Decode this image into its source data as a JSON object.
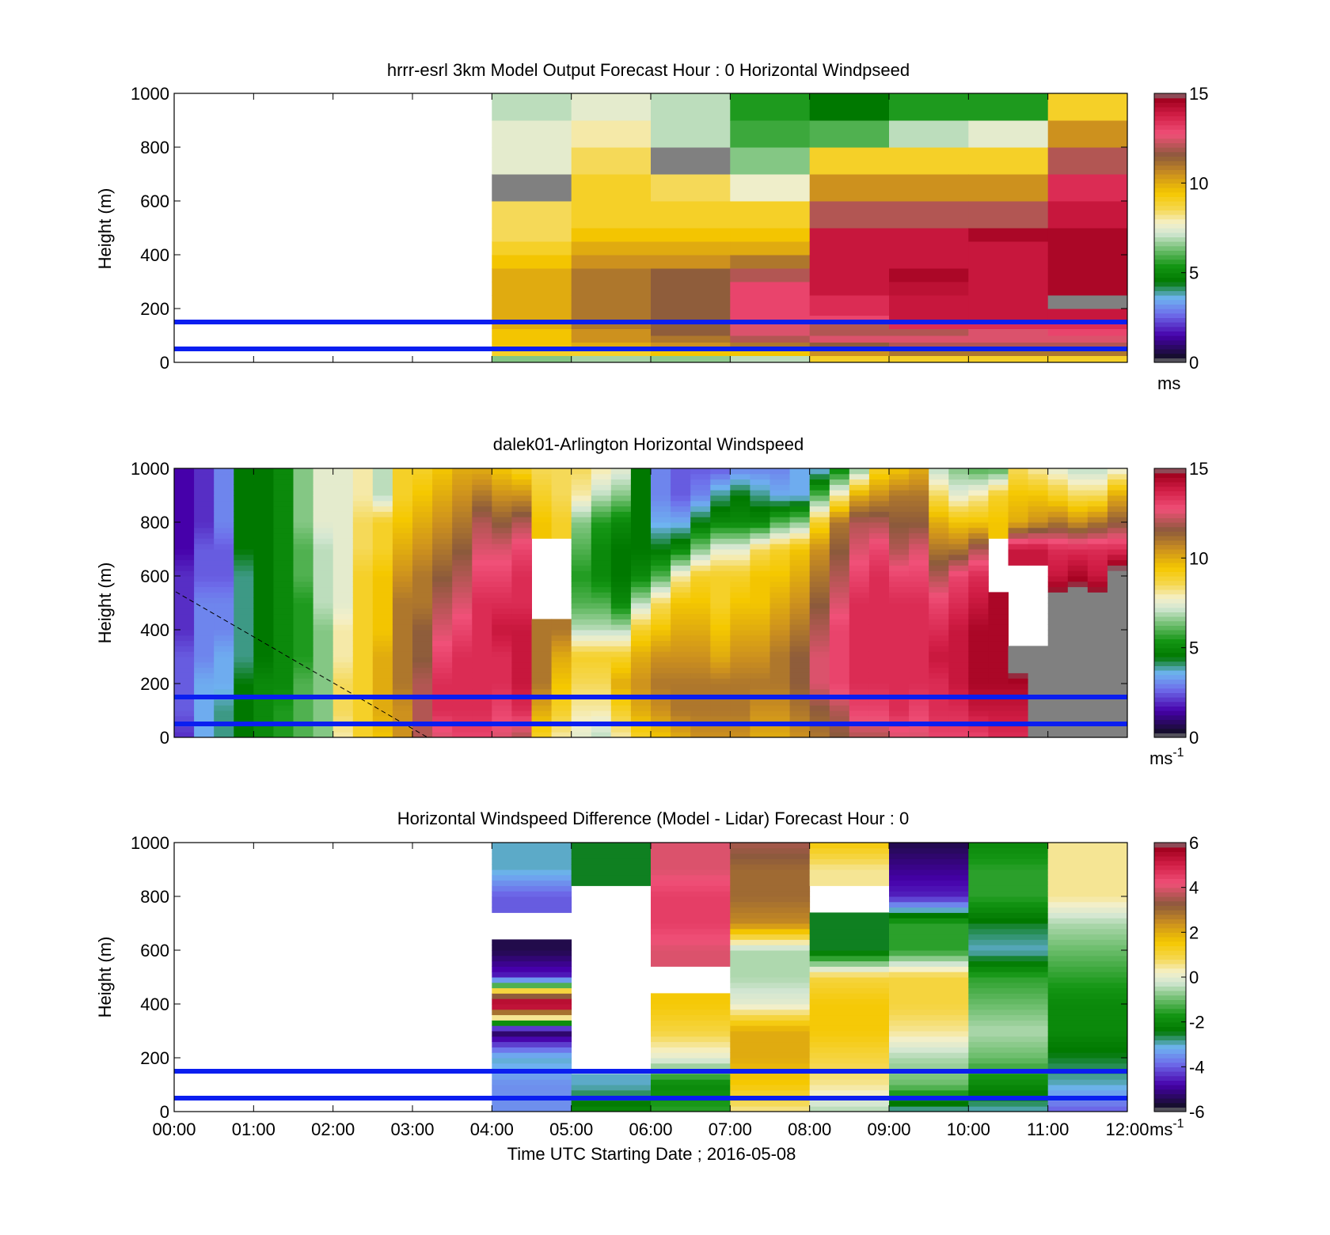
{
  "figure": {
    "xlabel": "Time UTC  Starting Date ; 2016-05-08",
    "x_ticks": [
      "00:00",
      "01:00",
      "02:00",
      "03:00",
      "04:00",
      "05:00",
      "06:00",
      "07:00",
      "08:00",
      "09:00",
      "10:00",
      "11:00",
      "12:00"
    ]
  },
  "colors": {
    "reference_lines": "#0a1ef0",
    "missing": "#808080"
  },
  "chart_data": [
    {
      "type": "heatmap",
      "title": "hrrr-esrl 3km Model Output   Forecast Hour : 0 Horizontal Windpseed",
      "ylabel": "Height (m)",
      "y_ticks": [
        "0",
        "200",
        "400",
        "600",
        "800",
        "1000"
      ],
      "ylim": [
        0,
        1000
      ],
      "xlim_hours": [
        0,
        12
      ],
      "colorbar": {
        "ticks": [
          "0",
          "5",
          "10",
          "15"
        ],
        "range": [
          0,
          15
        ],
        "unit": "ms",
        "superscript": ""
      },
      "reference_lines_m": [
        50,
        150
      ],
      "x_hours": [
        4,
        5,
        6,
        7,
        8,
        9,
        10,
        11
      ],
      "heights_m": [
        0,
        25,
        50,
        75,
        100,
        125,
        150,
        175,
        200,
        250,
        300,
        350,
        400,
        450,
        500,
        600,
        700,
        800,
        900
      ],
      "bin_edges_m": [
        0,
        25,
        50,
        75,
        100,
        125,
        150,
        175,
        200,
        250,
        300,
        350,
        400,
        450,
        500,
        600,
        700,
        800,
        900,
        1000
      ],
      "values": [
        [
          6.5,
          6.8,
          6.6,
          7.0,
          9.0,
          9.0,
          9.0,
          9.0
        ],
        [
          9.0,
          9.0,
          9.5,
          9.5,
          10.5,
          11.0,
          11.0,
          11.0
        ],
        [
          9.5,
          10.0,
          10.5,
          11.0,
          11.5,
          12.0,
          12.0,
          12.0
        ],
        [
          9.5,
          10.5,
          11.0,
          12.0,
          12.5,
          12.5,
          12.5,
          12.5
        ],
        [
          9.5,
          10.5,
          11.5,
          12.5,
          12.0,
          12.0,
          12.5,
          13.0
        ],
        [
          10.0,
          11.0,
          11.5,
          12.5,
          12.0,
          13.5,
          13.5,
          13.5
        ],
        [
          10.0,
          11.0,
          11.5,
          13.0,
          13.0,
          14.0,
          14.0,
          14.0
        ],
        [
          10.0,
          11.0,
          11.5,
          13.0,
          13.5,
          14.0,
          14.0,
          14.0
        ],
        [
          10.0,
          11.0,
          11.5,
          13.0,
          13.5,
          14.0,
          14.0,
          15.0
        ],
        [
          10.0,
          11.0,
          11.5,
          13.0,
          14.0,
          14.2,
          14.0,
          14.5
        ],
        [
          10.0,
          11.0,
          11.5,
          12.0,
          14.0,
          14.5,
          14.0,
          14.5
        ],
        [
          9.5,
          10.5,
          10.5,
          11.0,
          14.0,
          14.0,
          14.0,
          14.5
        ],
        [
          9.0,
          10.0,
          10.0,
          10.0,
          14.0,
          14.0,
          14.0,
          14.5
        ],
        [
          8.5,
          9.5,
          9.5,
          9.5,
          14.0,
          14.0,
          14.5,
          14.5
        ],
        [
          8.5,
          9.0,
          9.0,
          9.0,
          12.0,
          12.0,
          12.0,
          14.0
        ],
        [
          15.5,
          9.0,
          8.5,
          7.7,
          10.5,
          10.5,
          10.5,
          13.5
        ],
        [
          7.5,
          8.5,
          15.5,
          6.5,
          9.0,
          9.0,
          9.0,
          12.0
        ],
        [
          7.5,
          8.0,
          7.0,
          5.8,
          6.0,
          7.0,
          7.5,
          10.5
        ],
        [
          7.0,
          7.5,
          7.0,
          5.5,
          4.5,
          5.5,
          5.5,
          9.0
        ]
      ]
    },
    {
      "type": "heatmap",
      "title": "dalek01-Arlington  Horizontal Windspeed",
      "ylabel": "Height (m)",
      "y_ticks": [
        "0",
        "200",
        "400",
        "600",
        "800",
        "1000"
      ],
      "ylim": [
        0,
        1000
      ],
      "xlim_hours": [
        0,
        12
      ],
      "colorbar": {
        "ticks": [
          "0",
          "5",
          "10",
          "15"
        ],
        "range": [
          0,
          15
        ],
        "unit": "ms",
        "superscript": "-1"
      },
      "reference_lines_m": [
        50,
        150
      ],
      "x_hours": [
        0,
        0.25,
        0.5,
        0.75,
        1.0,
        1.25,
        1.5,
        1.75,
        2.0,
        2.25,
        2.5,
        2.75,
        3.0,
        3.25,
        3.5,
        3.75,
        4.0,
        4.25,
        4.5,
        4.75,
        5.0,
        5.25,
        5.5,
        5.75,
        6.0,
        6.25,
        6.5,
        6.75,
        7.0,
        7.25,
        7.5,
        7.75,
        8.0,
        8.25,
        8.5,
        8.75,
        9.0,
        9.25,
        9.5,
        9.75,
        10.0,
        10.25,
        10.5,
        10.75,
        11.0,
        11.25,
        11.5,
        11.75
      ],
      "profile_heights_m": [
        0,
        100,
        200,
        300,
        400,
        500,
        600,
        700,
        800,
        900,
        1000
      ],
      "profiles": [
        [
          2.0,
          2.5,
          2.5,
          2.5,
          2.0,
          2.0,
          2.0,
          1.5,
          1.5,
          1.5,
          1.5
        ],
        [
          3.5,
          3.5,
          3.5,
          3.0,
          3.0,
          3.0,
          2.5,
          2.5,
          2.0,
          2.0,
          2.0
        ],
        [
          4.0,
          4.0,
          3.5,
          3.5,
          3.0,
          3.0,
          2.5,
          2.5,
          3.0,
          3.0,
          3.0
        ],
        [
          4.5,
          4.5,
          4.5,
          4.0,
          4.0,
          4.0,
          4.0,
          4.5,
          4.5,
          4.5,
          4.5
        ],
        [
          5.0,
          5.0,
          5.0,
          4.5,
          4.5,
          4.5,
          4.5,
          4.5,
          4.5,
          4.5,
          4.5
        ],
        [
          5.5,
          5.5,
          5.0,
          5.0,
          5.0,
          5.0,
          5.0,
          5.0,
          5.0,
          5.0,
          5.0
        ],
        [
          6.0,
          6.0,
          6.0,
          5.5,
          5.5,
          5.5,
          6.0,
          6.0,
          6.5,
          6.5,
          6.5
        ],
        [
          6.5,
          6.5,
          6.5,
          6.5,
          6.5,
          7.0,
          7.0,
          7.0,
          7.5,
          7.5,
          7.5
        ],
        [
          8.0,
          8.5,
          8.5,
          8.0,
          8.0,
          7.5,
          7.5,
          7.5,
          7.5,
          7.5,
          7.5
        ],
        [
          9.0,
          9.0,
          9.0,
          9.0,
          9.0,
          9.0,
          9.0,
          8.5,
          8.5,
          8.0,
          8.0
        ],
        [
          9.5,
          10.0,
          10.0,
          10.0,
          9.5,
          9.5,
          9.5,
          9.0,
          9.0,
          7.0,
          7.0
        ],
        [
          10.5,
          10.5,
          11.0,
          11.0,
          11.0,
          11.0,
          10.5,
          10.0,
          9.5,
          9.0,
          9.0
        ],
        [
          12.0,
          12.0,
          12.0,
          11.5,
          11.5,
          11.0,
          11.0,
          10.5,
          10.0,
          9.5,
          9.0
        ],
        [
          12.5,
          13.5,
          13.5,
          13.0,
          12.5,
          12.0,
          11.5,
          11.0,
          10.5,
          10.0,
          9.5
        ],
        [
          13.0,
          13.5,
          13.5,
          13.5,
          13.0,
          12.5,
          12.0,
          11.5,
          11.0,
          10.5,
          10.0
        ],
        [
          13.0,
          13.5,
          13.5,
          13.5,
          13.5,
          13.5,
          13.0,
          12.5,
          12.0,
          11.0,
          10.0
        ],
        [
          12.5,
          13.0,
          13.5,
          13.5,
          14.0,
          13.5,
          13.0,
          12.5,
          11.5,
          10.5,
          9.5
        ],
        [
          12.0,
          13.5,
          14.0,
          14.0,
          14.0,
          13.5,
          13.5,
          13.0,
          12.0,
          10.5,
          9.0
        ],
        [
          9.0,
          10.0,
          11.0,
          11.0,
          11.0,
          null,
          null,
          null,
          9.5,
          9.0,
          8.5
        ],
        [
          8.0,
          9.0,
          9.5,
          10.0,
          11.0,
          null,
          null,
          null,
          9.0,
          8.5,
          8.5
        ],
        [
          7.5,
          8.0,
          8.5,
          9.0,
          7.0,
          6.0,
          5.5,
          6.0,
          6.5,
          8.0,
          8.5
        ],
        [
          7.0,
          8.0,
          8.5,
          9.0,
          7.0,
          6.0,
          5.0,
          5.0,
          5.5,
          7.0,
          8.0
        ],
        [
          8.0,
          9.0,
          10.0,
          9.0,
          7.0,
          5.0,
          4.5,
          4.5,
          5.0,
          6.5,
          7.5
        ],
        [
          9.0,
          10.0,
          10.5,
          10.0,
          9.0,
          7.0,
          5.0,
          4.5,
          4.5,
          4.5,
          4.5
        ],
        [
          9.5,
          10.5,
          11.0,
          10.5,
          9.5,
          8.5,
          6.0,
          4.5,
          3.5,
          3.0,
          3.0
        ],
        [
          10.0,
          11.0,
          11.0,
          10.5,
          10.0,
          9.5,
          8.0,
          5.0,
          3.5,
          2.5,
          2.5
        ],
        [
          10.5,
          11.0,
          11.0,
          10.5,
          10.0,
          9.5,
          9.0,
          6.5,
          4.5,
          3.0,
          2.5
        ],
        [
          10.5,
          11.0,
          11.0,
          10.0,
          9.5,
          9.0,
          9.0,
          7.5,
          5.0,
          4.0,
          2.5
        ],
        [
          10.5,
          11.0,
          11.0,
          10.5,
          10.0,
          9.5,
          9.0,
          7.5,
          5.0,
          4.5,
          3.0
        ],
        [
          10.0,
          10.5,
          11.0,
          10.5,
          10.0,
          9.5,
          9.5,
          8.5,
          5.0,
          4.0,
          3.0
        ],
        [
          10.0,
          10.5,
          11.0,
          11.0,
          10.5,
          10.0,
          9.5,
          9.0,
          6.0,
          3.5,
          3.0
        ],
        [
          10.5,
          11.0,
          11.5,
          11.5,
          11.0,
          10.5,
          10.0,
          9.5,
          6.5,
          3.5,
          3.5
        ],
        [
          11.0,
          11.5,
          12.5,
          12.5,
          12.0,
          11.5,
          11.0,
          10.5,
          9.0,
          6.0,
          3.5
        ],
        [
          11.5,
          12.0,
          13.0,
          13.0,
          13.0,
          12.5,
          12.0,
          11.5,
          11.0,
          8.0,
          5.0
        ],
        [
          12.0,
          13.0,
          13.5,
          13.5,
          13.5,
          13.5,
          13.0,
          12.5,
          12.0,
          10.0,
          6.5
        ],
        [
          12.0,
          13.0,
          13.5,
          13.5,
          13.5,
          13.5,
          13.5,
          13.0,
          12.0,
          10.5,
          9.0
        ],
        [
          12.5,
          13.5,
          13.5,
          13.5,
          13.5,
          13.5,
          13.0,
          12.0,
          11.5,
          11.0,
          9.5
        ],
        [
          12.5,
          13.0,
          13.5,
          13.5,
          13.5,
          13.5,
          13.0,
          12.5,
          11.5,
          11.0,
          10.0
        ],
        [
          13.0,
          13.5,
          13.5,
          14.0,
          13.5,
          13.0,
          12.0,
          11.0,
          10.0,
          8.5,
          7.0
        ],
        [
          13.0,
          13.5,
          14.0,
          14.0,
          14.0,
          13.5,
          13.0,
          11.0,
          9.5,
          7.5,
          6.5
        ],
        [
          13.0,
          14.0,
          14.5,
          14.5,
          14.5,
          14.0,
          13.5,
          12.0,
          9.5,
          8.0,
          6.0
        ],
        [
          13.5,
          14.0,
          14.5,
          14.5,
          14.5,
          14.5,
          null,
          null,
          9.5,
          9.0,
          6.0
        ],
        [
          13.5,
          14.0,
          14.5,
          15.5,
          null,
          null,
          null,
          14.0,
          10.0,
          9.5,
          8.5
        ],
        [
          15.5,
          15.5,
          15.5,
          15.5,
          null,
          null,
          null,
          14.0,
          10.5,
          9.5,
          8.0
        ],
        [
          15.5,
          15.5,
          15.5,
          15.5,
          15.5,
          15.5,
          14.0,
          13.5,
          11.0,
          9.0,
          7.5
        ],
        [
          15.5,
          15.5,
          15.5,
          15.5,
          15.5,
          15.5,
          14.5,
          13.5,
          10.5,
          8.5,
          7.0
        ],
        [
          15.5,
          15.5,
          15.5,
          15.5,
          15.5,
          15.5,
          14.0,
          13.5,
          11.0,
          8.5,
          7.0
        ],
        [
          15.5,
          15.5,
          15.5,
          15.5,
          15.5,
          15.5,
          15.5,
          13.5,
          11.5,
          10.0,
          7.5
        ]
      ]
    },
    {
      "type": "heatmap",
      "title": "Horizontal Windspeed Difference (Model - Lidar) Forecast Hour : 0",
      "ylabel": "Height (m)",
      "y_ticks": [
        "0",
        "200",
        "400",
        "600",
        "800",
        "1000"
      ],
      "ylim": [
        0,
        1000
      ],
      "xlim_hours": [
        0,
        12
      ],
      "colorbar": {
        "ticks": [
          "-6",
          "-4",
          "-2",
          "0",
          "2",
          "4",
          "6"
        ],
        "range": [
          -6,
          6
        ],
        "unit": "ms",
        "superscript": "-1"
      },
      "reference_lines_m": [
        50,
        150
      ],
      "x_hours": [
        4,
        5,
        6,
        7,
        8,
        9,
        10,
        11
      ],
      "profile_heights_m": [
        0,
        100,
        200,
        300,
        400,
        500,
        600,
        700,
        800,
        900,
        1000
      ],
      "profiles": [
        [
          -3.5,
          -3.5,
          -3.0,
          -5.5,
          6.5,
          -4.5,
          -5.5,
          null,
          -4.0,
          -3.0,
          -3.0
        ],
        [
          -2.0,
          -3.0,
          null,
          null,
          null,
          null,
          null,
          null,
          null,
          -2.5,
          -2.5
        ],
        [
          -1.5,
          -2.0,
          0.0,
          1.0,
          1.5,
          null,
          4.0,
          4.5,
          4.5,
          4.0,
          4.0
        ],
        [
          0.5,
          1.5,
          2.0,
          2.0,
          0.0,
          -0.5,
          -0.5,
          2.5,
          3.0,
          3.0,
          3.5
        ],
        [
          -0.5,
          0.5,
          1.0,
          1.5,
          1.5,
          1.0,
          -2.5,
          -2.5,
          null,
          0.5,
          1.5
        ],
        [
          -3.0,
          -1.0,
          -0.5,
          0.5,
          1.0,
          1.0,
          -1.5,
          -1.5,
          -4.5,
          -5.0,
          -5.5
        ],
        [
          -3.0,
          -2.0,
          -1.0,
          -0.5,
          -1.0,
          -1.5,
          -3.0,
          -2.5,
          -1.5,
          -1.5,
          -2.0
        ],
        [
          -4.0,
          -3.0,
          -2.5,
          -2.0,
          -2.0,
          -1.5,
          -1.0,
          -0.5,
          0.5,
          0.5,
          0.5
        ]
      ]
    }
  ]
}
